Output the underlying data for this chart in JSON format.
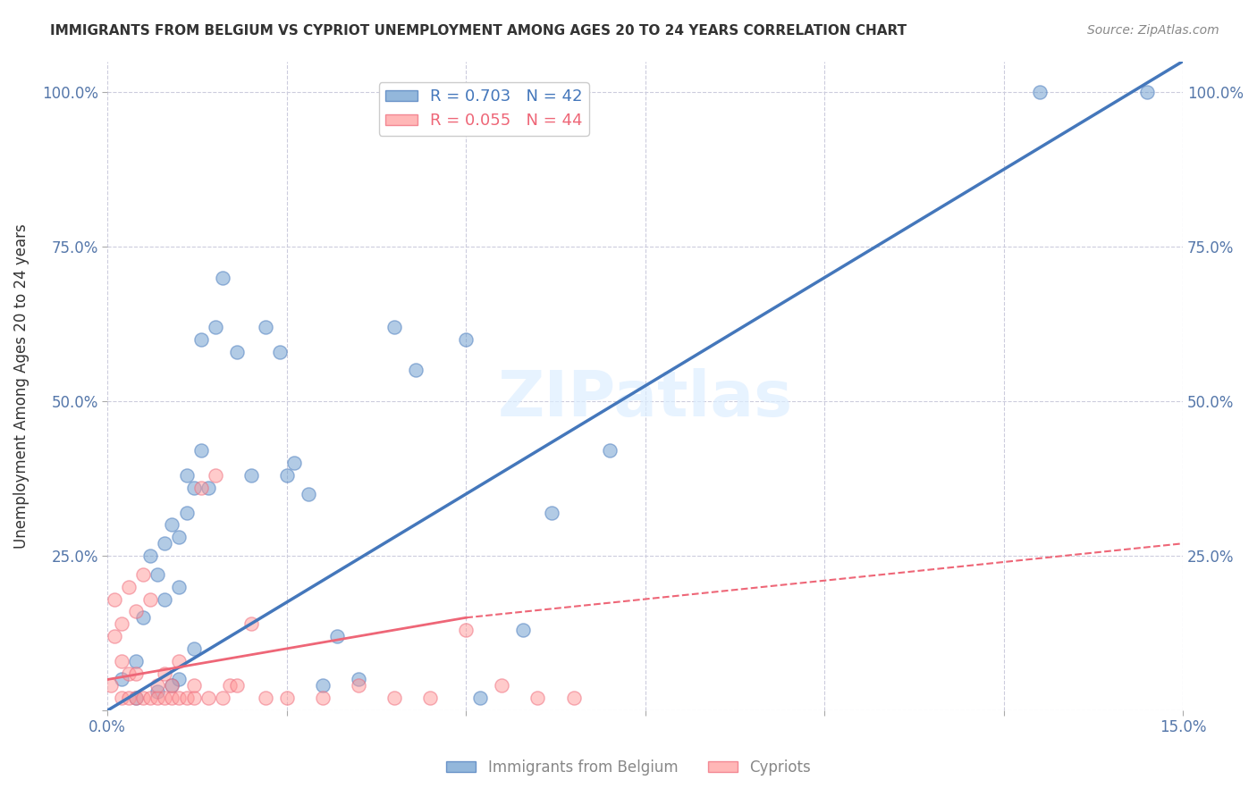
{
  "title": "IMMIGRANTS FROM BELGIUM VS CYPRIOT UNEMPLOYMENT AMONG AGES 20 TO 24 YEARS CORRELATION CHART",
  "source": "Source: ZipAtlas.com",
  "ylabel": "Unemployment Among Ages 20 to 24 years",
  "x_min": 0.0,
  "x_max": 0.15,
  "y_min": 0.0,
  "y_max": 1.05,
  "x_ticks": [
    0.0,
    0.025,
    0.05,
    0.075,
    0.1,
    0.125,
    0.15
  ],
  "x_tick_labels": [
    "0.0%",
    "",
    "",
    "",
    "",
    "",
    "15.0%"
  ],
  "y_ticks": [
    0.0,
    0.25,
    0.5,
    0.75,
    1.0
  ],
  "y_tick_labels": [
    "",
    "25.0%",
    "50.0%",
    "75.0%",
    "100.0%"
  ],
  "legend1_label": "R = 0.703   N = 42",
  "legend2_label": "R = 0.055   N = 44",
  "legend_label1_short": "Immigrants from Belgium",
  "legend_label2_short": "Cypriots",
  "color_blue": "#6699CC",
  "color_pink": "#FF9999",
  "color_blue_line": "#4477BB",
  "color_pink_line": "#EE6677",
  "watermark": "ZIPatlas",
  "blue_scatter_x": [
    0.002,
    0.004,
    0.004,
    0.005,
    0.006,
    0.007,
    0.007,
    0.008,
    0.008,
    0.009,
    0.009,
    0.01,
    0.01,
    0.01,
    0.011,
    0.011,
    0.012,
    0.012,
    0.013,
    0.013,
    0.014,
    0.015,
    0.016,
    0.018,
    0.02,
    0.022,
    0.024,
    0.025,
    0.026,
    0.028,
    0.03,
    0.032,
    0.035,
    0.04,
    0.043,
    0.05,
    0.052,
    0.058,
    0.062,
    0.07,
    0.13,
    0.145
  ],
  "blue_scatter_y": [
    0.05,
    0.02,
    0.08,
    0.15,
    0.25,
    0.03,
    0.22,
    0.18,
    0.27,
    0.04,
    0.3,
    0.05,
    0.2,
    0.28,
    0.32,
    0.38,
    0.1,
    0.36,
    0.42,
    0.6,
    0.36,
    0.62,
    0.7,
    0.58,
    0.38,
    0.62,
    0.58,
    0.38,
    0.4,
    0.35,
    0.04,
    0.12,
    0.05,
    0.62,
    0.55,
    0.6,
    0.02,
    0.13,
    0.32,
    0.42,
    1.0,
    1.0
  ],
  "pink_scatter_x": [
    0.0005,
    0.001,
    0.001,
    0.002,
    0.002,
    0.002,
    0.003,
    0.003,
    0.003,
    0.004,
    0.004,
    0.004,
    0.005,
    0.005,
    0.006,
    0.006,
    0.007,
    0.007,
    0.008,
    0.008,
    0.009,
    0.009,
    0.01,
    0.01,
    0.011,
    0.012,
    0.012,
    0.013,
    0.014,
    0.015,
    0.016,
    0.017,
    0.018,
    0.02,
    0.022,
    0.025,
    0.03,
    0.035,
    0.04,
    0.045,
    0.05,
    0.055,
    0.06,
    0.065
  ],
  "pink_scatter_y": [
    0.04,
    0.12,
    0.18,
    0.02,
    0.08,
    0.14,
    0.02,
    0.06,
    0.2,
    0.02,
    0.06,
    0.16,
    0.02,
    0.22,
    0.02,
    0.18,
    0.02,
    0.04,
    0.02,
    0.06,
    0.02,
    0.04,
    0.02,
    0.08,
    0.02,
    0.02,
    0.04,
    0.36,
    0.02,
    0.38,
    0.02,
    0.04,
    0.04,
    0.14,
    0.02,
    0.02,
    0.02,
    0.04,
    0.02,
    0.02,
    0.13,
    0.04,
    0.02,
    0.02
  ],
  "blue_line_x": [
    0.0,
    0.15
  ],
  "blue_line_y": [
    0.0,
    1.05
  ],
  "pink_solid_line_x": [
    0.0,
    0.05
  ],
  "pink_solid_line_y": [
    0.05,
    0.15
  ],
  "pink_dashed_line_x": [
    0.05,
    0.15
  ],
  "pink_dashed_line_y": [
    0.15,
    0.27
  ],
  "grid_color": "#CCCCDD",
  "bg_color": "#FFFFFF"
}
